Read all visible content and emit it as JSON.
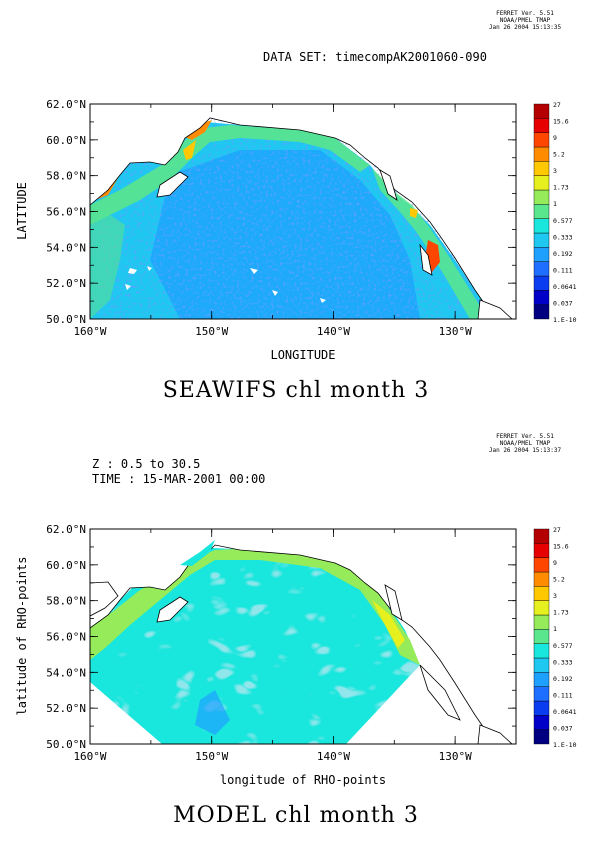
{
  "colors": {
    "palette": [
      "#000080",
      "#0000c8",
      "#0a3cf0",
      "#1e6eff",
      "#1ea0ff",
      "#1ec8f0",
      "#19e6dc",
      "#5ae68c",
      "#96eb5a",
      "#e6f01e",
      "#ffc800",
      "#ff8c00",
      "#ff4600",
      "#e60000",
      "#b40000"
    ],
    "land_fill": "#ffffff",
    "coast": "#000000"
  },
  "top": {
    "header": [
      "FERRET Ver. 5.51",
      "NOAA/PMEL TMAP",
      "Jan 26 2004 15:13:35"
    ],
    "dataset": "DATA SET: timecompAK2001060-090",
    "title": "SEAWIFS chl month 3"
  },
  "bottom": {
    "header": [
      "FERRET Ver. 5.51",
      "NOAA/PMEL TMAP",
      "Jan 26 2004 15:13:37"
    ],
    "info": [
      "Z : 0.5 to 30.5",
      "TIME : 15-MAR-2001 00:00"
    ],
    "title": "MODEL chl month 3"
  },
  "chart_data": [
    {
      "type": "heatmap",
      "title": "SEAWIFS chl month 3",
      "xlabel": "LONGITUDE",
      "ylabel": "LATITUDE",
      "xlim": [
        -160,
        -125
      ],
      "ylim": [
        50,
        62
      ],
      "x_ticks": [
        "160°W",
        "150°W",
        "140°W",
        "130°W"
      ],
      "y_ticks": [
        "50.0°N",
        "52.0°N",
        "54.0°N",
        "56.0°N",
        "58.0°N",
        "60.0°N",
        "62.0°N"
      ],
      "colorbar": [
        "1.E-10",
        "0.037",
        "0.0641",
        "0.111",
        "0.192",
        "0.333",
        "0.577",
        "1",
        "1.73",
        "3",
        "5.2",
        "9",
        "15.6",
        "27"
      ]
    },
    {
      "type": "heatmap",
      "title": "MODEL chl month 3",
      "xlabel": "longitude of RHO-points",
      "ylabel": "latitude of RHO-points",
      "xlim": [
        -160,
        -125
      ],
      "ylim": [
        50,
        62
      ],
      "x_ticks": [
        "160°W",
        "150°W",
        "140°W",
        "130°W"
      ],
      "y_ticks": [
        "50.0°N",
        "52.0°N",
        "54.0°N",
        "56.0°N",
        "58.0°N",
        "60.0°N",
        "62.0°N"
      ],
      "colorbar": [
        "1.E-10",
        "0.037",
        "0.0641",
        "0.111",
        "0.192",
        "0.333",
        "0.577",
        "1",
        "1.73",
        "3",
        "5.2",
        "9",
        "15.6",
        "27"
      ]
    }
  ]
}
